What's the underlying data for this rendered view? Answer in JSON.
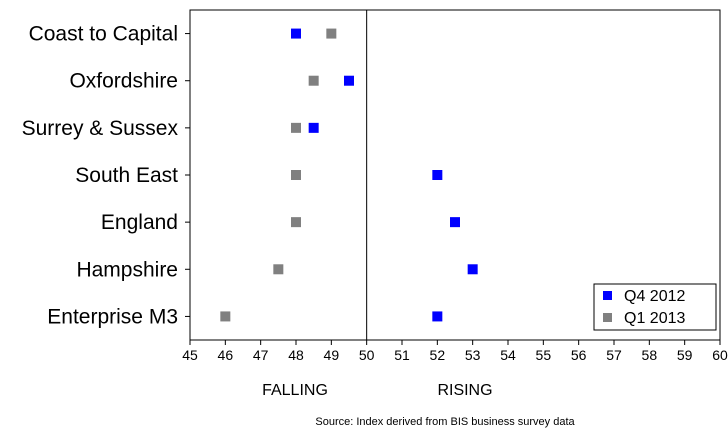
{
  "chart_data": {
    "type": "scatter",
    "orientation": "horizontal-categories",
    "categories": [
      "Coast to Capital",
      "Oxfordshire",
      "Surrey & Sussex",
      "South East",
      "England",
      "Hampshire",
      "Enterprise M3"
    ],
    "series": [
      {
        "name": "Q4 2012",
        "color": "#0000ff",
        "values": [
          48.0,
          49.5,
          48.5,
          52.0,
          52.5,
          53.0,
          52.0
        ]
      },
      {
        "name": "Q1 2013",
        "color": "#808080",
        "values": [
          49.0,
          48.5,
          48.0,
          48.0,
          48.0,
          47.5,
          46.0
        ]
      }
    ],
    "xlim": [
      45,
      60
    ],
    "x_ticks": [
      45,
      46,
      47,
      48,
      49,
      50,
      51,
      52,
      53,
      54,
      55,
      56,
      57,
      58,
      59,
      60
    ],
    "reference_line": 50,
    "region_labels": {
      "left": "FALLING",
      "right": "RISING"
    },
    "legend_position": "bottom-right",
    "grid": false,
    "source_note": "Source: Index derived from BIS business survey data"
  }
}
